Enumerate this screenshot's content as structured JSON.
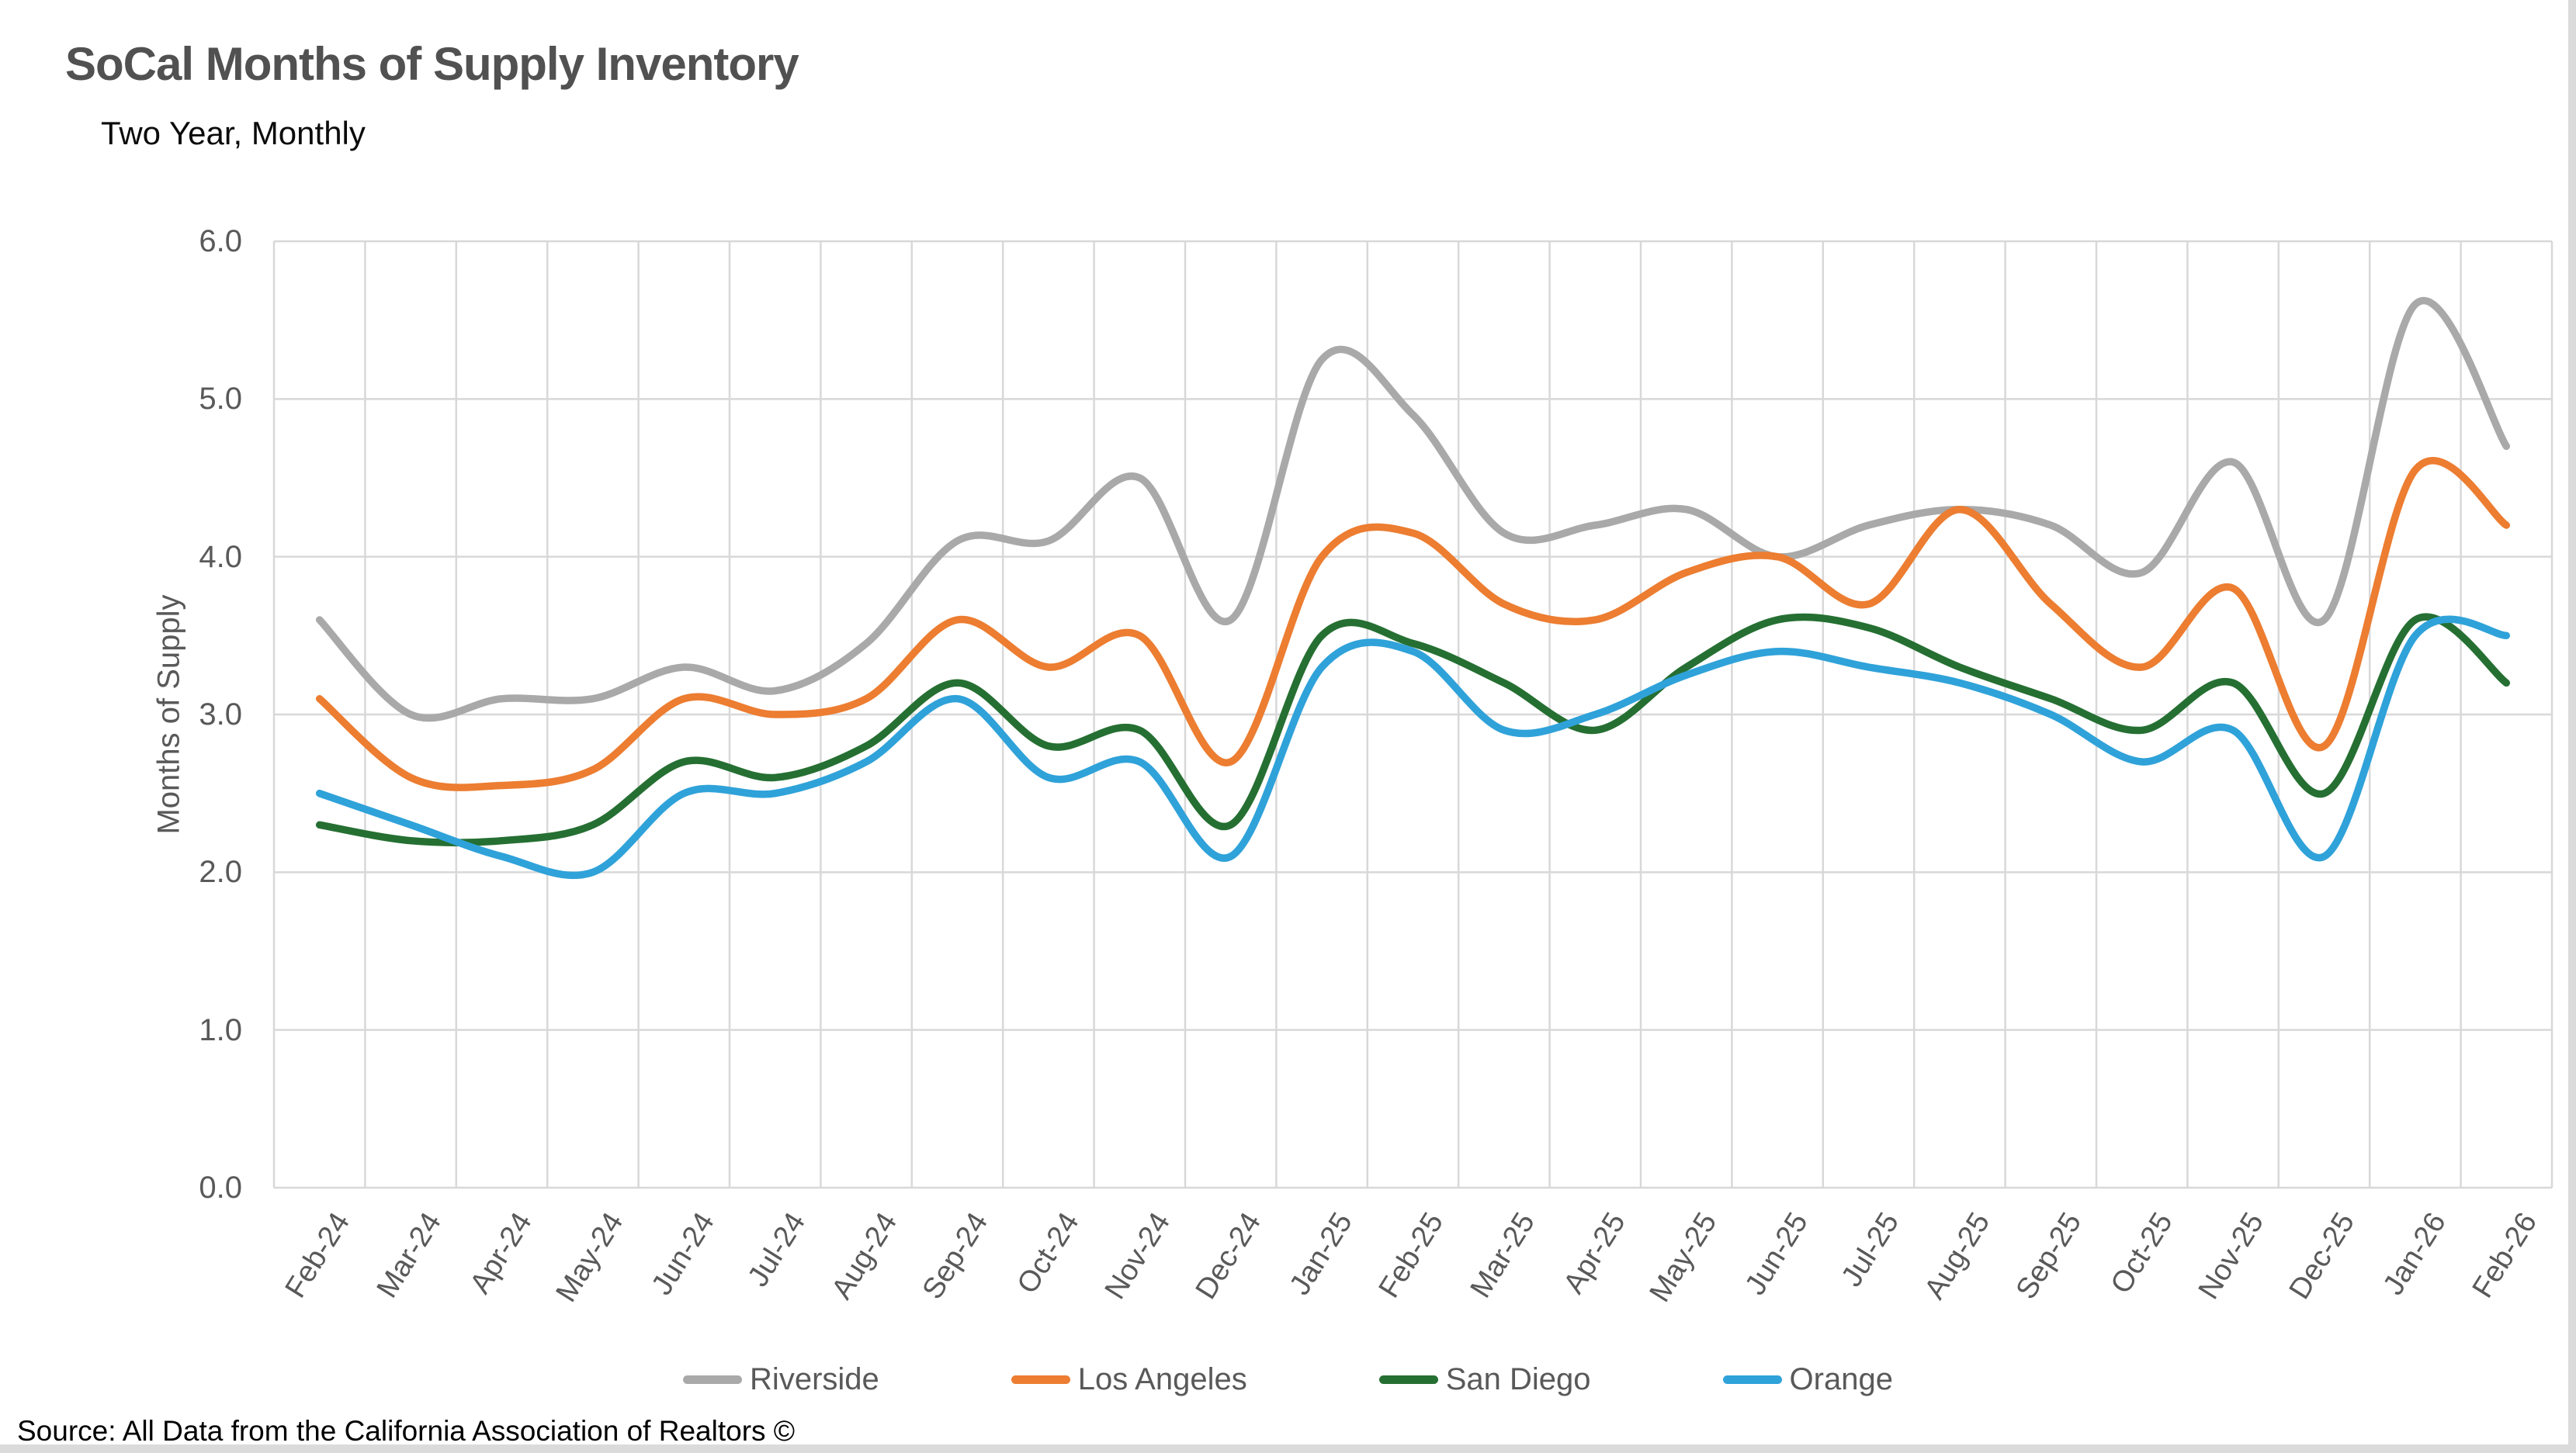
{
  "header": {
    "title": "SoCal Months of Supply Inventory",
    "subtitle": "Two Year, Monthly"
  },
  "source": "Source: All Data from the California Association of Realtors ©",
  "y_axis": {
    "title": "Months of Supply",
    "ticks": [
      "6.0",
      "5.0",
      "4.0",
      "3.0",
      "2.0",
      "1.0",
      "0.0"
    ]
  },
  "colors": {
    "gridline": "#d8d8d8",
    "axis_text": "#595959",
    "title_text": "#515151"
  },
  "chart_data": {
    "type": "line",
    "title": "SoCal Months of Supply Inventory",
    "subtitle": "Two Year, Monthly",
    "xlabel": "",
    "ylabel": "Months of Supply",
    "ylim": [
      0,
      6
    ],
    "y_tick_step": 1.0,
    "grid": true,
    "smooth": true,
    "legend_position": "bottom",
    "categories": [
      "Feb-24",
      "Mar-24",
      "Apr-24",
      "May-24",
      "Jun-24",
      "Jul-24",
      "Aug-24",
      "Sep-24",
      "Oct-24",
      "Nov-24",
      "Dec-24",
      "Jan-25",
      "Feb-25",
      "Mar-25",
      "Apr-25",
      "May-25",
      "Jun-25",
      "Jul-25",
      "Aug-25",
      "Sep-25",
      "Oct-25",
      "Nov-25",
      "Dec-25",
      "Jan-26",
      "Feb-26"
    ],
    "series": [
      {
        "name": "Riverside",
        "color": "#a9a9a9",
        "values": [
          3.6,
          3.0,
          3.1,
          3.1,
          3.3,
          3.15,
          3.45,
          4.1,
          4.1,
          4.5,
          3.6,
          5.25,
          4.9,
          4.15,
          4.2,
          4.3,
          4.0,
          4.2,
          4.3,
          4.2,
          3.9,
          4.6,
          3.6,
          5.6,
          4.7
        ]
      },
      {
        "name": "Los Angeles",
        "color": "#ec7d31",
        "values": [
          3.1,
          2.6,
          2.55,
          2.65,
          3.1,
          3.0,
          3.1,
          3.6,
          3.3,
          3.5,
          2.7,
          4.0,
          4.15,
          3.7,
          3.6,
          3.9,
          4.0,
          3.7,
          4.3,
          3.7,
          3.3,
          3.8,
          2.8,
          4.55,
          4.2
        ]
      },
      {
        "name": "San Diego",
        "color": "#256f32",
        "values": [
          2.3,
          2.2,
          2.2,
          2.3,
          2.7,
          2.6,
          2.8,
          3.2,
          2.8,
          2.9,
          2.3,
          3.5,
          3.45,
          3.2,
          2.9,
          3.3,
          3.6,
          3.55,
          3.3,
          3.1,
          2.9,
          3.2,
          2.5,
          3.6,
          3.2
        ]
      },
      {
        "name": "Orange",
        "color": "#2fa2d9",
        "values": [
          2.5,
          2.3,
          2.1,
          2.0,
          2.5,
          2.5,
          2.7,
          3.1,
          2.6,
          2.7,
          2.1,
          3.3,
          3.4,
          2.9,
          3.0,
          3.25,
          3.4,
          3.3,
          3.2,
          3.0,
          2.7,
          2.9,
          2.1,
          3.5,
          3.5
        ]
      }
    ]
  }
}
